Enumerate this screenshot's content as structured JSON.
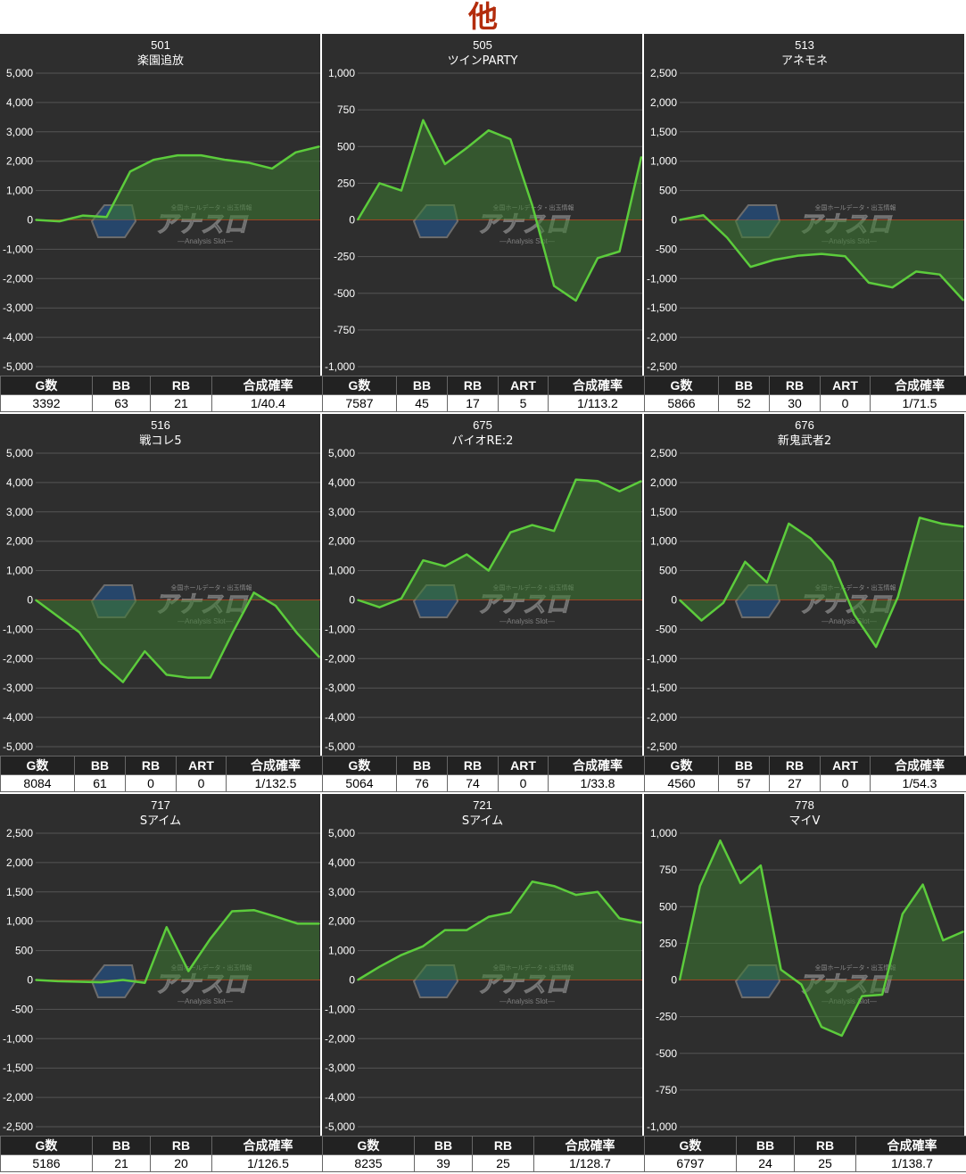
{
  "header": {
    "title": "他",
    "color": "#b32c0c"
  },
  "colors": {
    "line": "#5ccc3c",
    "fill": "#3d7a31",
    "zero": "#c0301f",
    "grid": "#555555",
    "bg": "#2e2e2e"
  },
  "watermark": {
    "brand": "アナスロ",
    "tagline": "—Analysis Slot—",
    "top": "全国ホールデータ・出玉情報"
  },
  "panels": [
    {
      "number": "501",
      "name": "楽園追放",
      "stats_headers": [
        "G数",
        "BB",
        "RB",
        "合成確率"
      ],
      "stats_values": [
        "3392",
        "63",
        "21",
        "1/40.4"
      ],
      "chart_data": {
        "type": "area",
        "ylim": [
          -5000,
          5000
        ],
        "yticks": [
          "5,000",
          "4,000",
          "3,000",
          "2,000",
          "1,000",
          "0",
          "-1,000",
          "-2,000",
          "-3,000",
          "-4,000",
          "-5,000"
        ],
        "values": [
          0,
          -50,
          150,
          100,
          1650,
          2050,
          2200,
          2200,
          2050,
          1950,
          1750,
          2300,
          2500
        ]
      }
    },
    {
      "number": "505",
      "name": "ツインPARTY",
      "stats_headers": [
        "G数",
        "BB",
        "RB",
        "ART",
        "合成確率"
      ],
      "stats_values": [
        "7587",
        "45",
        "17",
        "5",
        "1/113.2"
      ],
      "chart_data": {
        "type": "area",
        "ylim": [
          -1000,
          1000
        ],
        "yticks": [
          "1,000",
          "750",
          "500",
          "250",
          "0",
          "-250",
          "-500",
          "-750",
          "-1,000"
        ],
        "values": [
          0,
          250,
          200,
          680,
          380,
          490,
          610,
          550,
          100,
          -450,
          -550,
          -260,
          -215,
          430
        ]
      }
    },
    {
      "number": "513",
      "name": "アネモネ",
      "stats_headers": [
        "G数",
        "BB",
        "RB",
        "ART",
        "合成確率"
      ],
      "stats_values": [
        "5866",
        "52",
        "30",
        "0",
        "1/71.5"
      ],
      "chart_data": {
        "type": "area",
        "ylim": [
          -2500,
          2500
        ],
        "yticks": [
          "2,500",
          "2,000",
          "1,500",
          "1,000",
          "500",
          "0",
          "-500",
          "-1,000",
          "-1,500",
          "-2,000",
          "-2,500"
        ],
        "values": [
          0,
          80,
          -300,
          -800,
          -680,
          -610,
          -580,
          -620,
          -1070,
          -1150,
          -880,
          -930,
          -1370
        ]
      }
    },
    {
      "number": "516",
      "name": "戦コレ5",
      "stats_headers": [
        "G数",
        "BB",
        "RB",
        "ART",
        "合成確率"
      ],
      "stats_values": [
        "8084",
        "61",
        "0",
        "0",
        "1/132.5"
      ],
      "chart_data": {
        "type": "area",
        "ylim": [
          -5000,
          5000
        ],
        "yticks": [
          "5,000",
          "4,000",
          "3,000",
          "2,000",
          "1,000",
          "0",
          "-1,000",
          "-2,000",
          "-3,000",
          "-4,000",
          "-5,000"
        ],
        "values": [
          0,
          -550,
          -1100,
          -2150,
          -2800,
          -1750,
          -2550,
          -2650,
          -2650,
          -1150,
          250,
          -200,
          -1150,
          -1950
        ]
      }
    },
    {
      "number": "675",
      "name": "バイオRE:2",
      "stats_headers": [
        "G数",
        "BB",
        "RB",
        "ART",
        "合成確率"
      ],
      "stats_values": [
        "5064",
        "76",
        "74",
        "0",
        "1/33.8"
      ],
      "chart_data": {
        "type": "area",
        "ylim": [
          -5000,
          5000
        ],
        "yticks": [
          "5,000",
          "4,000",
          "3,000",
          "2,000",
          "1,000",
          "0",
          "-1,000",
          "-2,000",
          "-3,000",
          "-4,000",
          "-5,000"
        ],
        "values": [
          0,
          -250,
          50,
          1350,
          1150,
          1550,
          1000,
          2300,
          2550,
          2350,
          4100,
          4050,
          3700,
          4050
        ]
      }
    },
    {
      "number": "676",
      "name": "新鬼武者2",
      "stats_headers": [
        "G数",
        "BB",
        "RB",
        "ART",
        "合成確率"
      ],
      "stats_values": [
        "4560",
        "57",
        "27",
        "0",
        "1/54.3"
      ],
      "chart_data": {
        "type": "area",
        "ylim": [
          -2500,
          2500
        ],
        "yticks": [
          "2,500",
          "2,000",
          "1,500",
          "1,000",
          "500",
          "0",
          "-500",
          "-1,000",
          "-1,500",
          "-2,000",
          "-2,500"
        ],
        "values": [
          0,
          -350,
          -50,
          650,
          300,
          1300,
          1050,
          650,
          -250,
          -800,
          50,
          1400,
          1300,
          1250
        ]
      }
    },
    {
      "number": "717",
      "name": "Sアイム",
      "stats_headers": [
        "G数",
        "BB",
        "RB",
        "合成確率"
      ],
      "stats_values": [
        "5186",
        "21",
        "20",
        "1/126.5"
      ],
      "chart_data": {
        "type": "area",
        "ylim": [
          -2500,
          2500
        ],
        "yticks": [
          "2,500",
          "2,000",
          "1,500",
          "1,000",
          "500",
          "0",
          "-500",
          "-1,000",
          "-1,500",
          "-2,000",
          "-2,500"
        ],
        "values": [
          0,
          -20,
          -30,
          -40,
          0,
          -50,
          900,
          150,
          700,
          1170,
          1190,
          1080,
          960,
          960
        ]
      }
    },
    {
      "number": "721",
      "name": "Sアイム",
      "stats_headers": [
        "G数",
        "BB",
        "RB",
        "合成確率"
      ],
      "stats_values": [
        "8235",
        "39",
        "25",
        "1/128.7"
      ],
      "chart_data": {
        "type": "area",
        "ylim": [
          -5000,
          5000
        ],
        "yticks": [
          "5,000",
          "4,000",
          "3,000",
          "2,000",
          "1,000",
          "0",
          "-1,000",
          "-2,000",
          "-3,000",
          "-4,000",
          "-5,000"
        ],
        "values": [
          0,
          450,
          850,
          1150,
          1700,
          1700,
          2150,
          2300,
          3350,
          3200,
          2900,
          3000,
          2100,
          1950
        ]
      }
    },
    {
      "number": "778",
      "name": "マイV",
      "stats_headers": [
        "G数",
        "BB",
        "RB",
        "合成確率"
      ],
      "stats_values": [
        "6797",
        "24",
        "25",
        "1/138.7"
      ],
      "chart_data": {
        "type": "area",
        "ylim": [
          -1000,
          1000
        ],
        "yticks": [
          "1,000",
          "750",
          "500",
          "250",
          "0",
          "-250",
          "-500",
          "-750",
          "-1,000"
        ],
        "values": [
          0,
          640,
          950,
          660,
          780,
          70,
          -30,
          -320,
          -380,
          -110,
          -100,
          450,
          650,
          270,
          330
        ]
      }
    }
  ]
}
